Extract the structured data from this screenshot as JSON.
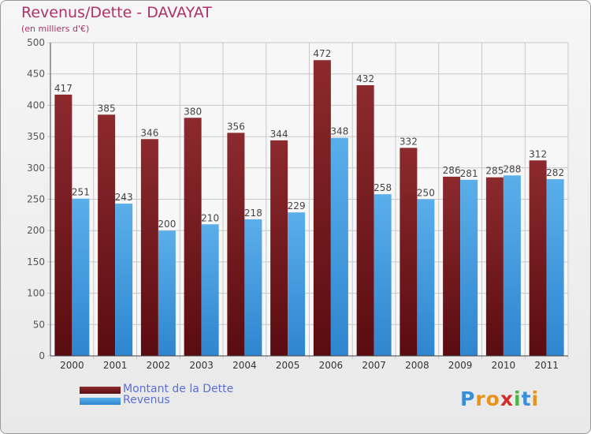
{
  "header": {
    "title": "Revenus/Dette - DAVAYAT",
    "subtitle": "(en milliers d'€)"
  },
  "colors": {
    "title": "#b0306a",
    "dette": "#7a1e22",
    "revenus": "#4a9fe0",
    "legend_text": "#5b6fd6",
    "grid": "#c8c8c8"
  },
  "chart_data": {
    "type": "bar",
    "categories": [
      "2000",
      "2001",
      "2002",
      "2003",
      "2004",
      "2005",
      "2006",
      "2007",
      "2008",
      "2009",
      "2010",
      "2011"
    ],
    "series": [
      {
        "name": "Montant de la Dette",
        "values": [
          417,
          385,
          346,
          380,
          356,
          344,
          472,
          432,
          332,
          286,
          285,
          312
        ]
      },
      {
        "name": "Revenus",
        "values": [
          251,
          243,
          200,
          210,
          218,
          229,
          348,
          258,
          250,
          281,
          288,
          282
        ]
      }
    ],
    "ylim": [
      0,
      500
    ],
    "yticks": [
      "0",
      "50",
      "100",
      "150",
      "200",
      "250",
      "300",
      "350",
      "400",
      "450",
      "500"
    ],
    "grid": true,
    "legend_position": "bottom-left"
  },
  "logo": {
    "letters": [
      {
        "ch": "P",
        "color": "#3a8fd8"
      },
      {
        "ch": "r",
        "color": "#e8941a"
      },
      {
        "ch": "o",
        "color": "#e8941a"
      },
      {
        "ch": "x",
        "color": "#d42c2c"
      },
      {
        "ch": "i",
        "color": "#4ab34a"
      },
      {
        "ch": "t",
        "color": "#3a8fd8"
      },
      {
        "ch": "i",
        "color": "#e8941a"
      }
    ]
  }
}
